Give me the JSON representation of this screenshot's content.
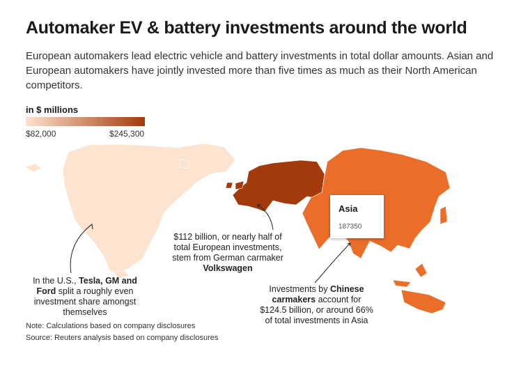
{
  "title": "Automaker EV & battery investments around the world",
  "subtitle": "European automakers lead electric vehicle and battery investments in total dollar amounts. Asian and European automakers have jointly invested more than five times as much as their North American competitors.",
  "legend": {
    "title": "in $ millions",
    "min_label": "$82,000",
    "max_label": "$245,300",
    "min_value": 82000,
    "max_value": 245300,
    "color_low": "#fce2cf",
    "color_high": "#a33a0b"
  },
  "regions": [
    {
      "name": "North America",
      "value": 82000,
      "color": "#fce4d0"
    },
    {
      "name": "Europe",
      "value": 245300,
      "color": "#a33a0b"
    },
    {
      "name": "Asia",
      "value": 187350,
      "color": "#ea6e2a"
    }
  ],
  "tooltip": {
    "title": "Asia",
    "value": "187350"
  },
  "annotations": {
    "us": {
      "pre": "In the U.S., ",
      "bold": "Tesla, GM and Ford",
      "post": " split a roughly even investment share amongst themselves"
    },
    "vw": {
      "pre": "$112 billion, or nearly half of total European investments, stem from German carmaker ",
      "bold": "Volkswagen",
      "post": ""
    },
    "china": {
      "pre": "Investments by ",
      "bold": "Chinese carmakers",
      "post": " account for $124.5 billion, or around 66% of total investments in Asia"
    }
  },
  "notes": {
    "note": "Note: Calculations based on company disclosures",
    "source": "Source: Reuters analysis based on company disclosures"
  }
}
